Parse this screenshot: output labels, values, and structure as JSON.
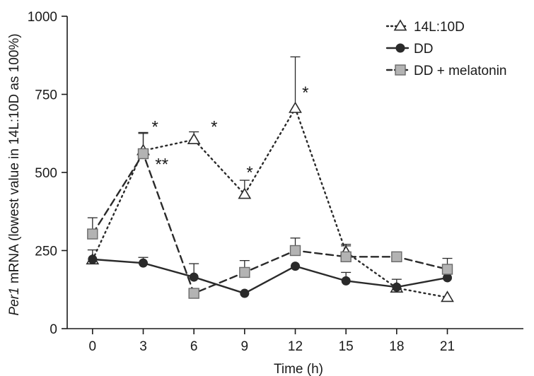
{
  "chart_data": {
    "type": "line",
    "xlabel": "Time (h)",
    "ylabel": {
      "italic_part": "Per1",
      "rest": " mRNA (lowest value in 14L:10D as 100%)"
    },
    "x": [
      0,
      3,
      6,
      9,
      12,
      15,
      18,
      21
    ],
    "xlim": [
      -1.5,
      25.5
    ],
    "ylim": [
      0,
      1000
    ],
    "xticks": [
      "0",
      "3",
      "6",
      "9",
      "12",
      "15",
      "18",
      "21"
    ],
    "yticks": [
      "0",
      "250",
      "500",
      "750",
      "1000"
    ],
    "grid": false,
    "legend_position": "top-right",
    "series": [
      {
        "name": "14L:10D",
        "marker": "triangle-open",
        "line_style": "dotted",
        "values": [
          220,
          570,
          605,
          430,
          705,
          245,
          130,
          100
        ],
        "error_upper": [
          null,
          625,
          630,
          475,
          870,
          265,
          null,
          null
        ]
      },
      {
        "name": "DD",
        "marker": "circle-filled",
        "line_style": "solid",
        "values": [
          222,
          210,
          165,
          113,
          200,
          153,
          133,
          163
        ],
        "error_upper": [
          252,
          228,
          208,
          null,
          null,
          180,
          158,
          null
        ]
      },
      {
        "name": "DD + melatonin",
        "marker": "square-gray",
        "line_style": "dashed",
        "values": [
          303,
          560,
          113,
          180,
          250,
          230,
          230,
          190
        ],
        "error_upper": [
          355,
          628,
          null,
          218,
          290,
          270,
          null,
          225
        ]
      }
    ],
    "annotations": [
      {
        "text": "*",
        "x": 3.7,
        "y": 650
      },
      {
        "text": "**",
        "x": 4.1,
        "y": 530
      },
      {
        "text": "*",
        "x": 7.2,
        "y": 650
      },
      {
        "text": "*",
        "x": 9.3,
        "y": 505
      },
      {
        "text": "*",
        "x": 12.6,
        "y": 760
      }
    ]
  },
  "colors": {
    "axis": "#1a1a1a",
    "line": "#2a2a2a",
    "square_fill": "#b3b3b3"
  }
}
